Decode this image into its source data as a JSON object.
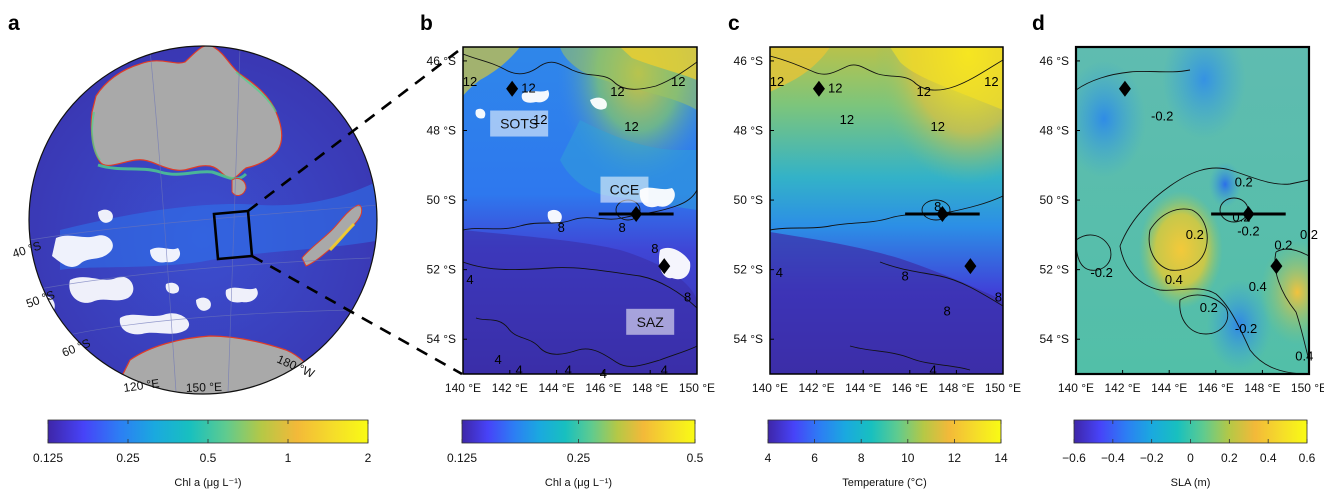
{
  "panels": [
    {
      "id": "a",
      "letter": "a",
      "globe": {
        "lat_labels": [
          "40 °S",
          "50 °S",
          "60 °S"
        ],
        "lon_labels": [
          "120 °E",
          "150 °E",
          "180 °W"
        ]
      },
      "colorbar": {
        "ticks": [
          "0.125",
          "0.25",
          "0.5",
          "1",
          "2"
        ],
        "label": "Chl a (μg L⁻¹)"
      }
    },
    {
      "id": "b",
      "letter": "b",
      "variable": "Chl a",
      "site_labels": [
        {
          "text": "SOTS",
          "lon": 142.4,
          "lat": -47.8
        },
        {
          "text": "CCE",
          "lon": 146.9,
          "lat": -49.7
        },
        {
          "text": "SAZ",
          "lon": 148.0,
          "lat": -53.5
        }
      ],
      "contour_labels": [
        {
          "text": "12",
          "lon": 140.3,
          "lat": -46.6
        },
        {
          "text": "12",
          "lon": 142.8,
          "lat": -46.8
        },
        {
          "text": "12",
          "lon": 143.3,
          "lat": -47.7
        },
        {
          "text": "12",
          "lon": 146.6,
          "lat": -46.9
        },
        {
          "text": "12",
          "lon": 147.2,
          "lat": -47.9
        },
        {
          "text": "12",
          "lon": 149.2,
          "lat": -46.6
        },
        {
          "text": "8",
          "lon": 144.2,
          "lat": -50.8
        },
        {
          "text": "8",
          "lon": 146.8,
          "lat": -50.8
        },
        {
          "text": "8",
          "lon": 148.2,
          "lat": -51.4
        },
        {
          "text": "8",
          "lon": 149.6,
          "lat": -52.8
        },
        {
          "text": "4",
          "lon": 140.3,
          "lat": -52.3
        },
        {
          "text": "4",
          "lon": 141.5,
          "lat": -54.6
        },
        {
          "text": "4",
          "lon": 142.4,
          "lat": -54.9
        },
        {
          "text": "4",
          "lon": 144.5,
          "lat": -54.9
        },
        {
          "text": "4",
          "lon": 146.0,
          "lat": -55.0
        },
        {
          "text": "4",
          "lon": 148.6,
          "lat": -54.9
        }
      ],
      "colorbar": {
        "ticks": [
          "0.125",
          "0.25",
          "0.5"
        ],
        "label": "Chl a (μg L⁻¹)"
      }
    },
    {
      "id": "c",
      "letter": "c",
      "variable": "Temperature",
      "contour_labels": [
        {
          "text": "12",
          "lon": 140.3,
          "lat": -46.6
        },
        {
          "text": "12",
          "lon": 142.8,
          "lat": -46.8
        },
        {
          "text": "12",
          "lon": 143.3,
          "lat": -47.7
        },
        {
          "text": "12",
          "lon": 146.6,
          "lat": -46.9
        },
        {
          "text": "12",
          "lon": 147.2,
          "lat": -47.9
        },
        {
          "text": "12",
          "lon": 149.5,
          "lat": -46.6
        },
        {
          "text": "8",
          "lon": 147.2,
          "lat": -50.2
        },
        {
          "text": "8",
          "lon": 145.8,
          "lat": -52.2
        },
        {
          "text": "8",
          "lon": 147.6,
          "lat": -53.2
        },
        {
          "text": "8",
          "lon": 149.8,
          "lat": -52.8
        },
        {
          "text": "4",
          "lon": 140.4,
          "lat": -52.1
        },
        {
          "text": "4",
          "lon": 147.0,
          "lat": -54.9
        }
      ],
      "colorbar": {
        "ticks": [
          "4",
          "6",
          "8",
          "10",
          "12",
          "14"
        ],
        "label": "Temperature (°C)"
      }
    },
    {
      "id": "d",
      "letter": "d",
      "variable": "SLA",
      "contour_labels": [
        {
          "text": "-0.2",
          "lon": 143.7,
          "lat": -47.6
        },
        {
          "text": "0.2",
          "lon": 147.2,
          "lat": -49.5
        },
        {
          "text": "0.2",
          "lon": 147.1,
          "lat": -50.5
        },
        {
          "text": "-0.2",
          "lon": 147.4,
          "lat": -50.9
        },
        {
          "text": "0.2",
          "lon": 145.1,
          "lat": -51.0
        },
        {
          "text": "0.2",
          "lon": 148.9,
          "lat": -51.3
        },
        {
          "text": "0.2",
          "lon": 150.0,
          "lat": -51.0
        },
        {
          "text": "-0.2",
          "lon": 141.1,
          "lat": -52.1
        },
        {
          "text": "0.4",
          "lon": 144.2,
          "lat": -52.3
        },
        {
          "text": "0.4",
          "lon": 147.8,
          "lat": -52.5
        },
        {
          "text": "0.2",
          "lon": 145.7,
          "lat": -53.1
        },
        {
          "text": "-0.2",
          "lon": 147.3,
          "lat": -53.7
        },
        {
          "text": "0.4",
          "lon": 149.8,
          "lat": -54.5
        }
      ],
      "colorbar": {
        "ticks": [
          "−0.6",
          "−0.4",
          "−0.2",
          "0",
          "0.2",
          "0.4",
          "0.6"
        ],
        "label": "SLA (m)"
      }
    }
  ],
  "region_axes": {
    "lon_range": [
      140,
      150
    ],
    "lat_range": [
      -55,
      -45.6
    ],
    "lon_ticks": [
      "140 °E",
      "142 °E",
      "144 °E",
      "146 °E",
      "148 °E",
      "150 °E"
    ],
    "lat_ticks": [
      "46 °S",
      "48 °S",
      "50 °S",
      "52 °S",
      "54 °S"
    ]
  },
  "stations": [
    {
      "lon": 142.1,
      "lat": -46.8
    },
    {
      "lon": 147.4,
      "lat": -50.4
    },
    {
      "lon": 148.6,
      "lat": -51.9
    }
  ],
  "ship_track": {
    "lon": [
      145.8,
      149.0
    ],
    "lat": -50.4
  },
  "colormap": [
    "#3e26a8",
    "#4743f8",
    "#2d7df4",
    "#1aa9df",
    "#18c0bf",
    "#5fcb8f",
    "#b5c846",
    "#f3b939",
    "#f5dc2a",
    "#f9fb14"
  ]
}
